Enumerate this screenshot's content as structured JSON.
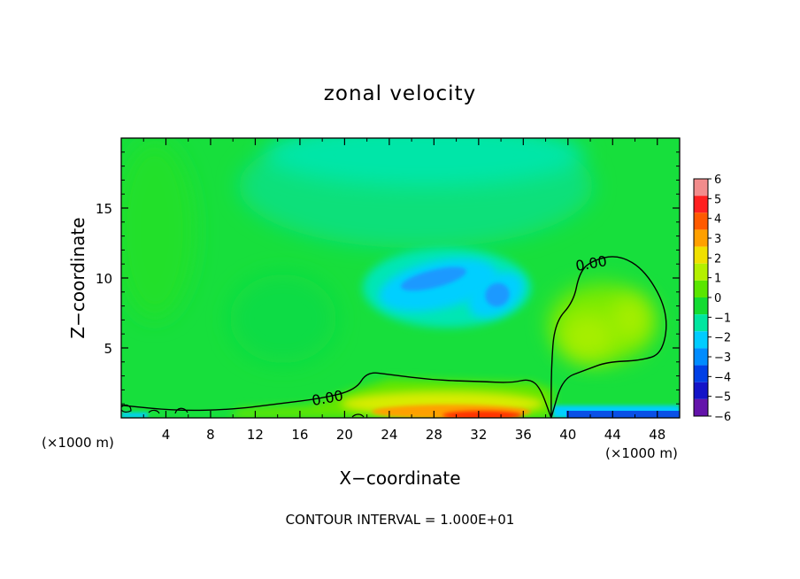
{
  "chart_data": {
    "type": "contour",
    "title": "zonal velocity",
    "xlabel": "X−coordinate",
    "ylabel": "Z−coordinate",
    "x_unit_label_left": "(×1000 m)",
    "x_unit_label_right": "(×1000 m)",
    "footer": "CONTOUR INTERVAL = 1.000E+01",
    "contour_label": "0.00",
    "xlim": [
      0,
      50
    ],
    "ylim": [
      0,
      20
    ],
    "x_ticks": [
      "4",
      "8",
      "12",
      "16",
      "20",
      "24",
      "28",
      "32",
      "36",
      "40",
      "44",
      "48"
    ],
    "y_ticks": [
      "5",
      "10",
      "15"
    ],
    "colorbar": {
      "ticks": [
        "6",
        "5",
        "4",
        "3",
        "2",
        "1",
        "0",
        "−1",
        "−2",
        "−3",
        "−4",
        "−5",
        "−6"
      ],
      "levels": [
        6,
        5,
        4,
        3,
        2,
        1,
        0,
        -1,
        -2,
        -3,
        -4,
        -5,
        -6
      ],
      "colors": [
        "#f28c8c",
        "#ff2020",
        "#ff5a00",
        "#ffa000",
        "#f0e000",
        "#b4f000",
        "#5ae600",
        "#14dc32",
        "#00e6a0",
        "#00ccff",
        "#008cff",
        "#0040e6",
        "#1414c8",
        "#6414aa"
      ]
    },
    "field_features": [
      {
        "kind": "background",
        "x": [
          0,
          50
        ],
        "z": [
          0,
          20
        ],
        "value": -0.5
      },
      {
        "kind": "jet-minimum",
        "x": 28,
        "z": 10.2,
        "value": -3
      },
      {
        "kind": "jet-minimum",
        "x": 33.5,
        "z": 8.7,
        "value": -3
      },
      {
        "kind": "near-surface-maximum",
        "x": 32,
        "z": 0.4,
        "value": 5
      },
      {
        "kind": "surface-minimum",
        "x": 44,
        "z": 0.2,
        "value": -4
      },
      {
        "kind": "positive-cell",
        "x": 43,
        "z": 6.5,
        "value": 1.5
      }
    ],
    "contour_zero": [
      [
        [
          0,
          0.9
        ],
        [
          5,
          0.5
        ],
        [
          10,
          0.6
        ],
        [
          14,
          1
        ],
        [
          18,
          1.4
        ],
        [
          21,
          2
        ],
        [
          22,
          3.3
        ],
        [
          24,
          3.1
        ],
        [
          28,
          2.7
        ],
        [
          32,
          2.6
        ],
        [
          35,
          2.5
        ],
        [
          36.5,
          2.8
        ],
        [
          37.5,
          2.2
        ],
        [
          38.5,
          0
        ]
      ],
      [
        [
          38.5,
          0
        ],
        [
          38.5,
          3.5
        ],
        [
          38.8,
          6.8
        ],
        [
          40.5,
          8.3
        ],
        [
          41,
          10.3
        ],
        [
          42,
          11.2
        ],
        [
          44.5,
          11.7
        ],
        [
          47,
          10.5
        ],
        [
          49,
          7.5
        ],
        [
          48.5,
          4.6
        ],
        [
          46.5,
          4.1
        ],
        [
          43.5,
          4
        ],
        [
          41.5,
          3.4
        ],
        [
          39.5,
          2.8
        ],
        [
          38.5,
          0
        ]
      ]
    ]
  }
}
